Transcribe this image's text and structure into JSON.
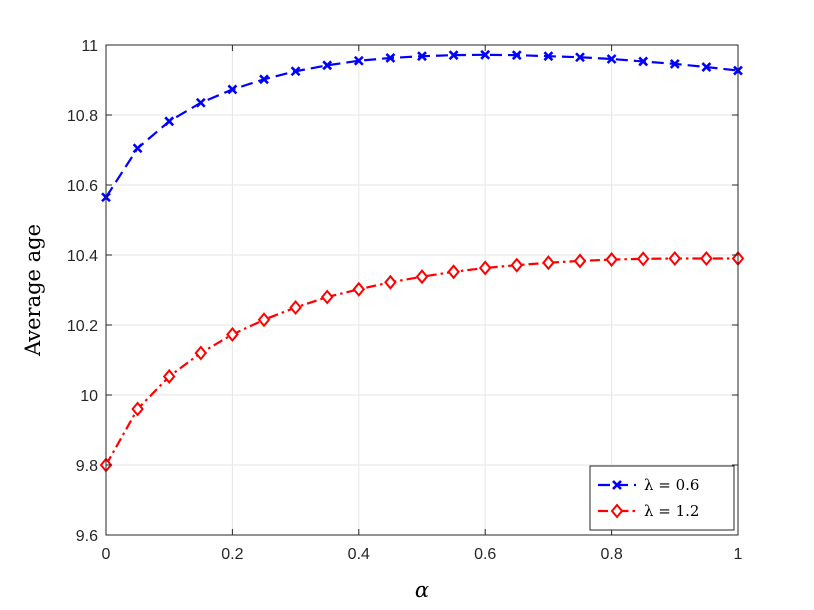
{
  "chart_data": {
    "type": "line",
    "xlabel": "α",
    "ylabel": "Average age",
    "xlim": [
      0,
      1
    ],
    "ylim": [
      9.6,
      11
    ],
    "xticks": [
      0,
      0.2,
      0.4,
      0.6,
      0.8,
      1
    ],
    "xtick_labels": [
      "0",
      "0.2",
      "0.4",
      "0.6",
      "0.8",
      "1"
    ],
    "yticks": [
      9.6,
      9.8,
      10,
      10.2,
      10.4,
      10.6,
      10.8,
      11
    ],
    "ytick_labels": [
      "9.6",
      "9.8",
      "10",
      "10.2",
      "10.4",
      "10.6",
      "10.8",
      "11"
    ],
    "grid": true,
    "legend_position": "bottom-right",
    "x": [
      0,
      0.05,
      0.1,
      0.15,
      0.2,
      0.25,
      0.3,
      0.35,
      0.4,
      0.45,
      0.5,
      0.55,
      0.6,
      0.65,
      0.7,
      0.75,
      0.8,
      0.85,
      0.9,
      0.95,
      1
    ],
    "series": [
      {
        "name": "λ = 0.6",
        "color": "#0000ff",
        "line_style": "dashed",
        "marker": "x",
        "values": [
          10.565,
          10.705,
          10.782,
          10.835,
          10.873,
          10.902,
          10.925,
          10.942,
          10.955,
          10.963,
          10.968,
          10.971,
          10.972,
          10.971,
          10.968,
          10.965,
          10.96,
          10.953,
          10.946,
          10.937,
          10.927
        ]
      },
      {
        "name": "λ = 1.2",
        "color": "#ff0000",
        "line_style": "dashdot",
        "marker": "diamond",
        "values": [
          9.8,
          9.96,
          10.053,
          10.12,
          10.173,
          10.215,
          10.25,
          10.28,
          10.302,
          10.322,
          10.338,
          10.352,
          10.363,
          10.371,
          10.378,
          10.383,
          10.387,
          10.389,
          10.39,
          10.39,
          10.39
        ]
      }
    ]
  }
}
